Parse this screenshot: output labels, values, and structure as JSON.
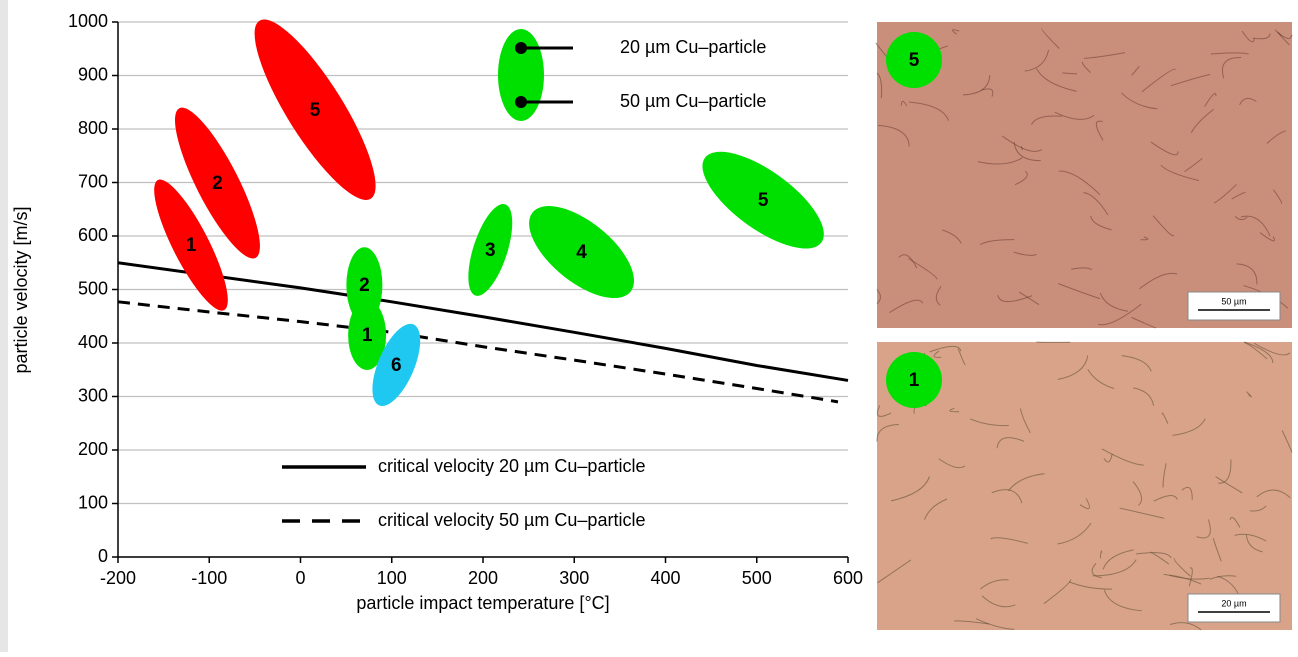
{
  "chart_data": {
    "type": "scatter",
    "xlabel": "particle impact temperature [°C]",
    "ylabel": "particle velocity [m/s]",
    "xlim": [
      -200,
      600
    ],
    "xticks": [
      -200,
      -100,
      0,
      100,
      200,
      300,
      400,
      500,
      600
    ],
    "ylim": [
      0,
      1000
    ],
    "yticks": [
      0,
      100,
      200,
      300,
      400,
      500,
      600,
      700,
      800,
      900,
      1000
    ],
    "grid": true,
    "regions": [
      {
        "label": "1",
        "color": "#ff0000",
        "x": -120,
        "y": 583
      },
      {
        "label": "2",
        "color": "#ff0000",
        "x": -91,
        "y": 699
      },
      {
        "label": "5",
        "color": "#ff0000",
        "x": 16,
        "y": 836
      },
      {
        "label": "2",
        "color": "#00e000",
        "x": 70,
        "y": 508
      },
      {
        "label": "1",
        "color": "#00e000",
        "x": 73,
        "y": 415
      },
      {
        "label": "6",
        "color": "#1ec8f0",
        "x": 105,
        "y": 359
      },
      {
        "label": "3",
        "color": "#00e000",
        "x": 208,
        "y": 574
      },
      {
        "label": "4",
        "color": "#00e000",
        "x": 308,
        "y": 570
      },
      {
        "label": "5",
        "color": "#00e000",
        "x": 507,
        "y": 667
      }
    ],
    "marker_legend": [
      "20 µm Cu–particle",
      "50 µm Cu–particle"
    ],
    "marker_legend_color": "#00e000",
    "series": [
      {
        "name": "critical velocity 20 µm Cu–particle",
        "color": "#000000",
        "dashed": false,
        "x": [
          -200,
          0,
          100,
          200,
          300,
          400,
          500,
          600
        ],
        "values": [
          550,
          503,
          477,
          449,
          420,
          390,
          358,
          330
        ]
      },
      {
        "name": "critical velocity 50 µm Cu–particle",
        "color": "#000000",
        "dashed": true,
        "x": [
          -200,
          -100,
          0,
          100,
          200,
          300,
          400,
          500,
          589
        ],
        "values": [
          477,
          458,
          440,
          420,
          393,
          368,
          342,
          315,
          290
        ]
      }
    ]
  },
  "micrographs": [
    {
      "label": "5",
      "scale": "50 µm"
    },
    {
      "label": "1",
      "scale": "20 µm"
    }
  ]
}
